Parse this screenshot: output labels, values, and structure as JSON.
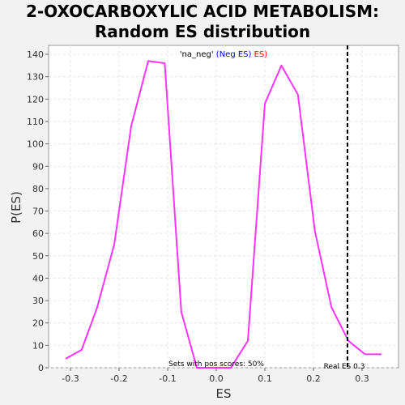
{
  "title_lines": [
    "2-OXOCARBOXYLIC ACID METABOLISM:",
    "Random ES distribution"
  ],
  "chart_data": {
    "type": "line",
    "xlabel": "ES",
    "ylabel": "P(ES)",
    "xlim": [
      -0.345,
      0.375
    ],
    "ylim": [
      0,
      144
    ],
    "x_ticks": [
      -0.3,
      -0.2,
      -0.1,
      0.0,
      0.1,
      0.2,
      0.3
    ],
    "x_tick_labels": [
      "-0.3",
      "-0.2",
      "-0.1",
      "0.0",
      "0.1",
      "0.2",
      "0.3"
    ],
    "y_ticks": [
      0,
      10,
      20,
      30,
      40,
      50,
      60,
      70,
      80,
      90,
      100,
      110,
      120,
      130,
      140
    ],
    "grid": true,
    "legend": {
      "placement": "top-center",
      "parts": [
        {
          "text": "'na_neg' ",
          "color": "#000000"
        },
        {
          "text": "(Neg ES) ",
          "color": "#0000ff"
        },
        {
          "text": "ES)",
          "color": "#ff0000"
        }
      ]
    },
    "series": [
      {
        "color": "#ff33ff",
        "x": [
          -0.31,
          -0.277,
          -0.245,
          -0.21,
          -0.175,
          -0.14,
          -0.106,
          -0.072,
          -0.04,
          -0.005,
          0.03,
          0.065,
          0.1,
          0.134,
          0.168,
          0.203,
          0.237,
          0.272,
          0.306,
          0.34
        ],
        "y": [
          4,
          8,
          27,
          55,
          108,
          137,
          136,
          25,
          0,
          0,
          0,
          12,
          118,
          135,
          122,
          61,
          27,
          12,
          6,
          6
        ]
      }
    ],
    "reference_line": {
      "x": 0.27,
      "style": "dashed",
      "color": "#000000",
      "label": "Real ES 0.3"
    },
    "annotation": "Sets with pos scores: 50%"
  }
}
